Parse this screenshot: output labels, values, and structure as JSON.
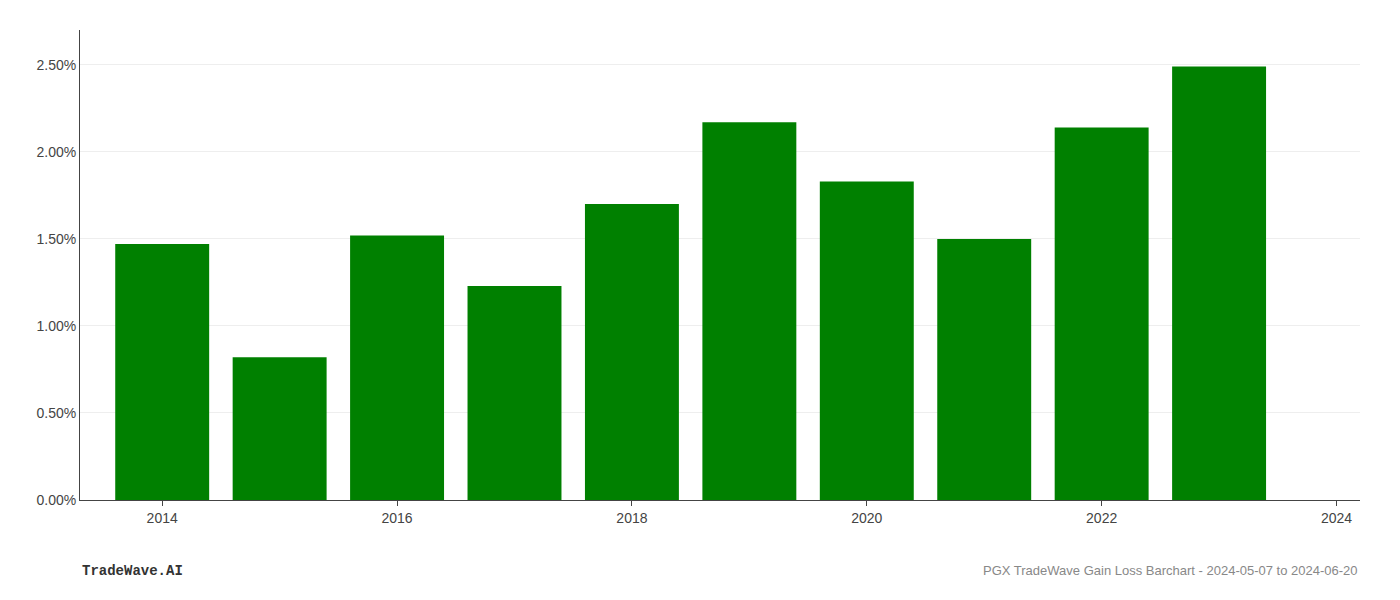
{
  "chart_data": {
    "type": "bar",
    "x": [
      2014,
      2015,
      2016,
      2017,
      2018,
      2019,
      2020,
      2021,
      2022,
      2023
    ],
    "values": [
      0.0147,
      0.0082,
      0.0152,
      0.0123,
      0.017,
      0.0217,
      0.0183,
      0.015,
      0.0214,
      0.0249
    ],
    "color": "#008000",
    "xlim": [
      2013.3,
      2024.2
    ],
    "xticks": [
      2014,
      2016,
      2018,
      2020,
      2022,
      2024
    ],
    "ylim": [
      0,
      0.027
    ],
    "yticks": [
      {
        "value": 0.0,
        "label": "0.00%"
      },
      {
        "value": 0.005,
        "label": "0.50%"
      },
      {
        "value": 0.01,
        "label": "1.00%"
      },
      {
        "value": 0.015,
        "label": "1.50%"
      },
      {
        "value": 0.02,
        "label": "2.00%"
      },
      {
        "value": 0.025,
        "label": "2.50%"
      }
    ],
    "grid": true,
    "annotations": [
      "TradeWave.AI",
      "PGX TradeWave Gain Loss Barchart - 2024-05-07 to 2024-06-20"
    ]
  }
}
